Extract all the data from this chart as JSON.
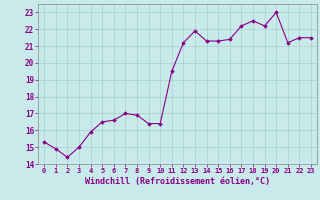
{
  "x": [
    0,
    1,
    2,
    3,
    4,
    5,
    6,
    7,
    8,
    9,
    10,
    11,
    12,
    13,
    14,
    15,
    16,
    17,
    18,
    19,
    20,
    21,
    22,
    23
  ],
  "y": [
    15.3,
    14.9,
    14.4,
    15.0,
    15.9,
    16.5,
    16.6,
    17.0,
    16.9,
    16.4,
    16.4,
    19.5,
    21.2,
    21.9,
    21.3,
    21.3,
    21.4,
    22.2,
    22.5,
    22.2,
    23.0,
    21.2,
    21.5,
    21.5
  ],
  "line_color": "#880088",
  "marker": "D",
  "marker_size": 1.8,
  "bg_color": "#c8eaea",
  "grid_color": "#a8cece",
  "xlabel": "Windchill (Refroidissement éolien,°C)",
  "xlabel_color": "#880088",
  "tick_color": "#880088",
  "ylim": [
    14,
    23.5
  ],
  "yticks": [
    14,
    15,
    16,
    17,
    18,
    19,
    20,
    21,
    22,
    23
  ],
  "xticks": [
    0,
    1,
    2,
    3,
    4,
    5,
    6,
    7,
    8,
    9,
    10,
    11,
    12,
    13,
    14,
    15,
    16,
    17,
    18,
    19,
    20,
    21,
    22,
    23
  ],
  "spine_color": "#888888"
}
